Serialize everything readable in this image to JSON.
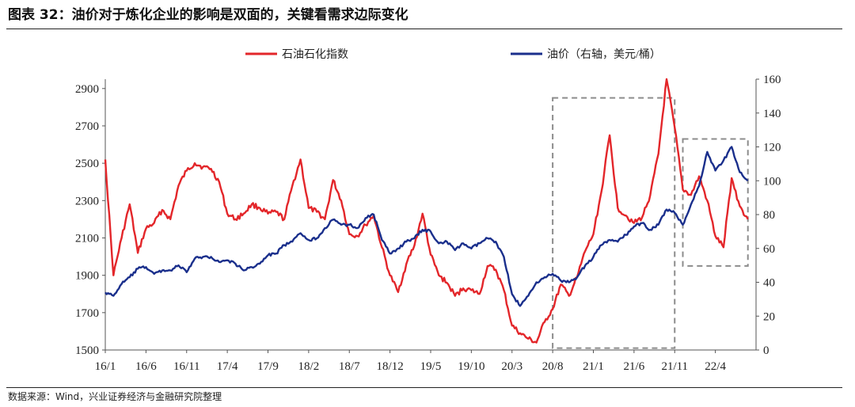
{
  "header": {
    "title": "图表 32：油价对于炼化企业的影响是双面的，关键看需求边际变化"
  },
  "footer": {
    "source": "数据来源：Wind，兴业证券经济与金融研究院整理"
  },
  "chart_data": {
    "type": "line",
    "legend_position": "top",
    "grid": false,
    "x_ticks": [
      "16/1",
      "16/6",
      "16/11",
      "17/4",
      "17/9",
      "18/2",
      "18/7",
      "18/12",
      "19/5",
      "19/10",
      "20/3",
      "20/8",
      "21/1",
      "21/6",
      "21/11",
      "22/4"
    ],
    "y_left": {
      "ticks": [
        1500,
        1700,
        1900,
        2100,
        2300,
        2500,
        2700,
        2900
      ],
      "range": [
        1500,
        2950
      ]
    },
    "y_right": {
      "ticks": [
        0,
        20,
        40,
        60,
        80,
        100,
        120,
        140,
        160
      ],
      "range": [
        0,
        160
      ]
    },
    "series": [
      {
        "name": "石油石化指数",
        "axis": "left",
        "color": "#e3262a",
        "points": [
          [
            "2016-01",
            2520
          ],
          [
            "2016-02",
            1900
          ],
          [
            "2016-03",
            2100
          ],
          [
            "2016-04",
            2280
          ],
          [
            "2016-05",
            2020
          ],
          [
            "2016-06",
            2150
          ],
          [
            "2016-07",
            2180
          ],
          [
            "2016-08",
            2250
          ],
          [
            "2016-09",
            2200
          ],
          [
            "2016-10",
            2380
          ],
          [
            "2016-11",
            2460
          ],
          [
            "2016-12",
            2500
          ],
          [
            "2017-01",
            2480
          ],
          [
            "2017-02",
            2470
          ],
          [
            "2017-03",
            2400
          ],
          [
            "2017-04",
            2230
          ],
          [
            "2017-05",
            2200
          ],
          [
            "2017-06",
            2230
          ],
          [
            "2017-07",
            2280
          ],
          [
            "2017-08",
            2260
          ],
          [
            "2017-09",
            2230
          ],
          [
            "2017-10",
            2240
          ],
          [
            "2017-11",
            2200
          ],
          [
            "2017-12",
            2380
          ],
          [
            "2018-01",
            2520
          ],
          [
            "2018-02",
            2260
          ],
          [
            "2018-03",
            2240
          ],
          [
            "2018-04",
            2200
          ],
          [
            "2018-05",
            2410
          ],
          [
            "2018-06",
            2300
          ],
          [
            "2018-07",
            2120
          ],
          [
            "2018-08",
            2110
          ],
          [
            "2018-09",
            2170
          ],
          [
            "2018-10",
            2220
          ],
          [
            "2018-11",
            2050
          ],
          [
            "2018-12",
            1900
          ],
          [
            "2019-01",
            1810
          ],
          [
            "2019-02",
            1960
          ],
          [
            "2019-03",
            2060
          ],
          [
            "2019-04",
            2230
          ],
          [
            "2019-05",
            2010
          ],
          [
            "2019-06",
            1900
          ],
          [
            "2019-07",
            1860
          ],
          [
            "2019-08",
            1790
          ],
          [
            "2019-09",
            1830
          ],
          [
            "2019-10",
            1820
          ],
          [
            "2019-11",
            1800
          ],
          [
            "2019-12",
            1950
          ],
          [
            "2020-01",
            1930
          ],
          [
            "2020-02",
            1820
          ],
          [
            "2020-03",
            1630
          ],
          [
            "2020-04",
            1590
          ],
          [
            "2020-05",
            1560
          ],
          [
            "2020-06",
            1540
          ],
          [
            "2020-07",
            1650
          ],
          [
            "2020-08",
            1720
          ],
          [
            "2020-09",
            1850
          ],
          [
            "2020-10",
            1790
          ],
          [
            "2020-11",
            1890
          ],
          [
            "2020-12",
            2030
          ],
          [
            "2021-01",
            2120
          ],
          [
            "2021-02",
            2350
          ],
          [
            "2021-03",
            2650
          ],
          [
            "2021-04",
            2260
          ],
          [
            "2021-05",
            2220
          ],
          [
            "2021-06",
            2180
          ],
          [
            "2021-07",
            2210
          ],
          [
            "2021-08",
            2330
          ],
          [
            "2021-09",
            2550
          ],
          [
            "2021-10",
            2950
          ],
          [
            "2021-11",
            2690
          ],
          [
            "2021-12",
            2360
          ],
          [
            "2022-01",
            2330
          ],
          [
            "2022-02",
            2430
          ],
          [
            "2022-03",
            2300
          ],
          [
            "2022-04",
            2110
          ],
          [
            "2022-05",
            2050
          ],
          [
            "2022-06",
            2420
          ],
          [
            "2022-07",
            2270
          ],
          [
            "2022-08",
            2200
          ]
        ]
      },
      {
        "name": "油价（右轴，美元/桶）",
        "axis": "right",
        "color": "#1a2f8c",
        "points": [
          [
            "2016-01",
            34
          ],
          [
            "2016-02",
            32
          ],
          [
            "2016-03",
            39
          ],
          [
            "2016-04",
            43
          ],
          [
            "2016-05",
            48
          ],
          [
            "2016-06",
            49
          ],
          [
            "2016-07",
            45
          ],
          [
            "2016-08",
            47
          ],
          [
            "2016-09",
            47
          ],
          [
            "2016-10",
            50
          ],
          [
            "2016-11",
            46
          ],
          [
            "2016-12",
            54
          ],
          [
            "2017-01",
            55
          ],
          [
            "2017-02",
            55
          ],
          [
            "2017-03",
            52
          ],
          [
            "2017-04",
            53
          ],
          [
            "2017-05",
            51
          ],
          [
            "2017-06",
            47
          ],
          [
            "2017-07",
            49
          ],
          [
            "2017-08",
            51
          ],
          [
            "2017-09",
            56
          ],
          [
            "2017-10",
            57
          ],
          [
            "2017-11",
            62
          ],
          [
            "2017-12",
            64
          ],
          [
            "2018-01",
            69
          ],
          [
            "2018-02",
            65
          ],
          [
            "2018-03",
            66
          ],
          [
            "2018-04",
            72
          ],
          [
            "2018-05",
            77
          ],
          [
            "2018-06",
            74
          ],
          [
            "2018-07",
            74
          ],
          [
            "2018-08",
            72
          ],
          [
            "2018-09",
            78
          ],
          [
            "2018-10",
            80
          ],
          [
            "2018-11",
            65
          ],
          [
            "2018-12",
            57
          ],
          [
            "2019-01",
            60
          ],
          [
            "2019-02",
            64
          ],
          [
            "2019-03",
            66
          ],
          [
            "2019-04",
            71
          ],
          [
            "2019-05",
            70
          ],
          [
            "2019-06",
            63
          ],
          [
            "2019-07",
            64
          ],
          [
            "2019-08",
            59
          ],
          [
            "2019-09",
            63
          ],
          [
            "2019-10",
            60
          ],
          [
            "2019-11",
            63
          ],
          [
            "2019-12",
            66
          ],
          [
            "2020-01",
            64
          ],
          [
            "2020-02",
            55
          ],
          [
            "2020-03",
            33
          ],
          [
            "2020-04",
            26
          ],
          [
            "2020-05",
            32
          ],
          [
            "2020-06",
            40
          ],
          [
            "2020-07",
            43
          ],
          [
            "2020-08",
            45
          ],
          [
            "2020-09",
            41
          ],
          [
            "2020-10",
            40
          ],
          [
            "2020-11",
            43
          ],
          [
            "2020-12",
            50
          ],
          [
            "2021-01",
            55
          ],
          [
            "2021-02",
            62
          ],
          [
            "2021-03",
            65
          ],
          [
            "2021-04",
            64
          ],
          [
            "2021-05",
            68
          ],
          [
            "2021-06",
            73
          ],
          [
            "2021-07",
            75
          ],
          [
            "2021-08",
            71
          ],
          [
            "2021-09",
            74
          ],
          [
            "2021-10",
            83
          ],
          [
            "2021-11",
            81
          ],
          [
            "2021-12",
            74
          ],
          [
            "2022-01",
            86
          ],
          [
            "2022-02",
            97
          ],
          [
            "2022-03",
            117
          ],
          [
            "2022-04",
            106
          ],
          [
            "2022-05",
            112
          ],
          [
            "2022-06",
            120
          ],
          [
            "2022-07",
            105
          ],
          [
            "2022-08",
            100
          ]
        ]
      }
    ],
    "annotations": [
      {
        "type": "dashed-box",
        "x_from": "2020-08",
        "x_to": "2021-11",
        "y_from": 1510,
        "y_to": 2850,
        "axis": "left"
      },
      {
        "type": "dashed-box",
        "x_from": "2021-12",
        "x_to": "2022-08",
        "y_from": 1950,
        "y_to": 2630,
        "axis": "left"
      }
    ]
  }
}
